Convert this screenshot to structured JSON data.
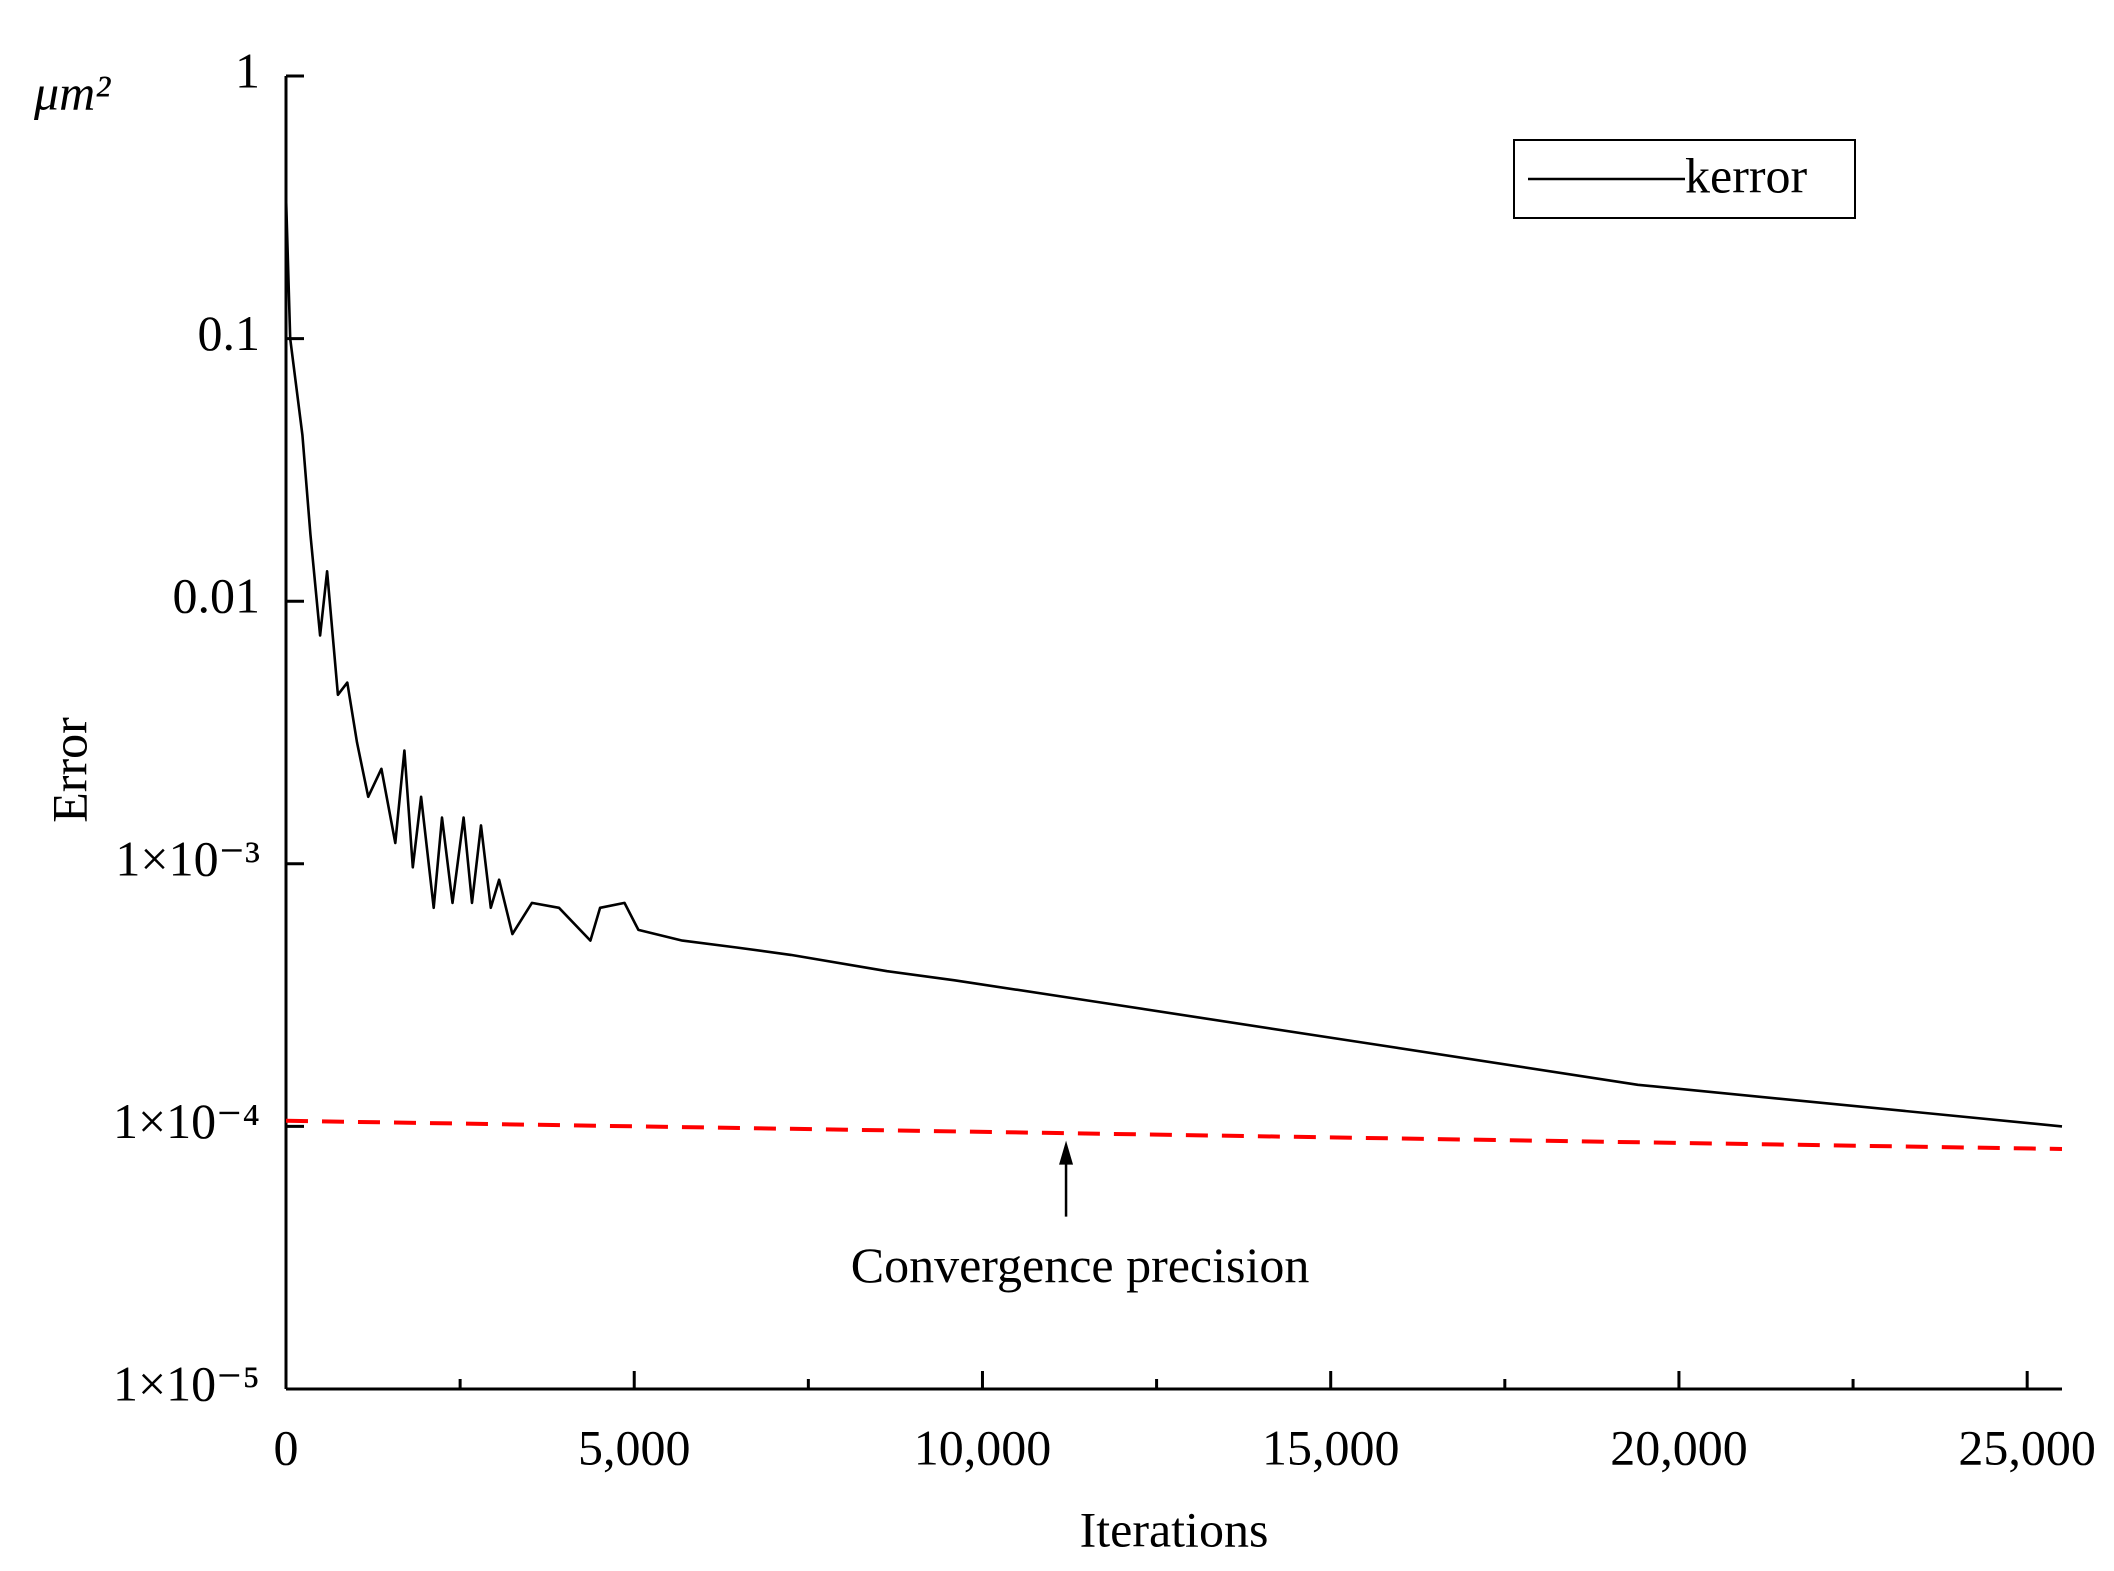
{
  "chart_data": {
    "type": "line",
    "y_unit": "μm²",
    "xlabel": "Iterations",
    "ylabel": "Error",
    "ylog": true,
    "xlim": [
      0,
      25500
    ],
    "ylim": [
      1e-05,
      1
    ],
    "xticks": [
      0,
      {
        "value": 5000,
        "label": "5,000"
      },
      {
        "value": 10000,
        "label": "10,000"
      },
      {
        "value": 15000,
        "label": "15,000"
      },
      {
        "value": 20000,
        "label": "20,000"
      },
      {
        "value": 25000,
        "label": "25,000"
      }
    ],
    "xminorticks": [
      2500,
      7500,
      12500,
      17500,
      22500
    ],
    "yticks": [
      {
        "value": 1e-05,
        "label": "1×10⁻⁵"
      },
      {
        "value": 0.0001,
        "label": "1×10⁻⁴"
      },
      {
        "value": 0.001,
        "label": "1×10⁻³"
      },
      0.01,
      0.1,
      1
    ],
    "legend": "top-right",
    "series": [
      {
        "name": "kerror",
        "color": "#000000",
        "dash": false,
        "x": [
          0,
          60,
          235,
          350,
          490,
          590,
          745,
          880,
          1020,
          1180,
          1370,
          1570,
          1700,
          1820,
          1940,
          2120,
          2240,
          2390,
          2550,
          2670,
          2800,
          2940,
          3060,
          3250,
          3530,
          3920,
          4370,
          4510,
          4860,
          5060,
          5690,
          6470,
          7250,
          8630,
          9600,
          11570,
          15490,
          19410,
          25500
        ],
        "values": [
          0.35,
          0.1,
          0.043,
          0.018,
          0.0074,
          0.013,
          0.0044,
          0.0049,
          0.0029,
          0.0018,
          0.0023,
          0.0012,
          0.0027,
          0.00097,
          0.0018,
          0.00068,
          0.0015,
          0.00071,
          0.0015,
          0.00071,
          0.0014,
          0.00068,
          0.00087,
          0.00054,
          0.00071,
          0.00068,
          0.00051,
          0.00068,
          0.00071,
          0.00056,
          0.00051,
          0.00048,
          0.00045,
          0.00039,
          0.00036,
          0.0003,
          0.000208,
          0.000144,
          0.0001
        ]
      },
      {
        "color": "#ff0000",
        "dash": true,
        "x": [
          0,
          25500
        ],
        "values": [
          0.000105,
          8.2e-05
        ]
      }
    ],
    "annotation": {
      "text": "Convergence precision",
      "x": 11200,
      "y": 9.3e-05
    }
  }
}
